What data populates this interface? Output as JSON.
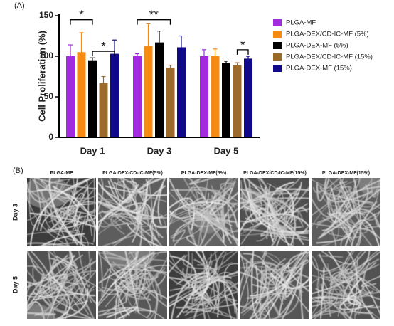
{
  "chart_data": {
    "type": "bar",
    "ylabel": "Cell Proliferation (%)",
    "categories": [
      "Day 1",
      "Day 3",
      "Day 5"
    ],
    "ylim": [
      0,
      150
    ],
    "yticks": [
      0,
      50,
      100,
      150
    ],
    "grid": false,
    "legend": "right",
    "series": [
      {
        "name": "PLGA-MF",
        "color": "#a22be0",
        "values": [
          100,
          100,
          100
        ],
        "errors": [
          14,
          3,
          8
        ]
      },
      {
        "name": "PLGA-DEX/CD-IC-MF (5%)",
        "color": "#f78a10",
        "values": [
          105,
          113,
          100
        ],
        "errors": [
          24,
          27,
          9
        ]
      },
      {
        "name": "PLGA-DEX-MF (5%)",
        "color": "#000000",
        "values": [
          95,
          117,
          92
        ],
        "errors": [
          3,
          14,
          2
        ]
      },
      {
        "name": "PLGA-DEX/CD-IC-MF (15%)",
        "color": "#9c6b2b",
        "values": [
          67,
          86,
          89
        ],
        "errors": [
          8,
          3,
          3
        ]
      },
      {
        "name": "PLGA-DEX-MF (15%)",
        "color": "#100a8a",
        "values": [
          103,
          111,
          97
        ],
        "errors": [
          17,
          14,
          3
        ]
      }
    ],
    "annotations": [
      {
        "text": "*",
        "category": 0,
        "from": 0,
        "to": 2,
        "level": 145
      },
      {
        "text": "*",
        "category": 0,
        "from": 2,
        "to": 4,
        "level": 106
      },
      {
        "text": "**",
        "category": 1,
        "from": 0,
        "to": 3,
        "level": 145
      },
      {
        "text": "*",
        "category": 2,
        "from": 3,
        "to": 4,
        "level": 108
      }
    ]
  },
  "panel_labels": [
    "(A)",
    "(B)"
  ],
  "micrographs": {
    "columns": [
      "PLGA-MF",
      "PLGA-DEX/CD-IC-MF(5%)",
      "PLGA-DEX-MF(5%)",
      "PLGA-DEX/CD-IC-MF(15%)",
      "PLGA-DEX-MF(15%)"
    ],
    "rows": [
      "Day 3",
      "Day 5"
    ]
  }
}
